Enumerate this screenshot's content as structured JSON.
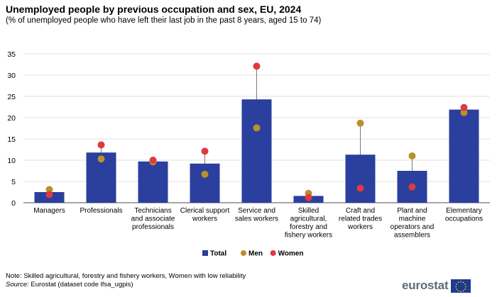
{
  "chart_data": {
    "type": "bar",
    "title": "Unemployed people by previous occupation and sex, EU, 2024",
    "subtitle": "(% of unemployed people who have left their last job in the past 8 years, aged 15 to 74)",
    "xlabel": "",
    "ylabel": "",
    "ylim": [
      0,
      35
    ],
    "yticks": [
      0,
      5,
      10,
      15,
      20,
      25,
      30,
      35
    ],
    "grid": true,
    "legend_position": "bottom-center",
    "categories": [
      [
        "Managers"
      ],
      [
        "Professionals"
      ],
      [
        "Technicians",
        "and associate",
        "professionals"
      ],
      [
        "Clerical support",
        "workers"
      ],
      [
        "Service and",
        "sales workers"
      ],
      [
        "Skilled",
        "agricultural,",
        "forestry and",
        "fishery workers"
      ],
      [
        "Craft and",
        "related trades",
        "workers"
      ],
      [
        "Plant and",
        "machine",
        "operators and",
        "assemblers"
      ],
      [
        "Elementary",
        "occupations"
      ]
    ],
    "series": [
      {
        "name": "Total",
        "kind": "bar",
        "color": "#2a3f9e",
        "values": [
          2.5,
          11.8,
          9.7,
          9.2,
          24.3,
          1.6,
          11.3,
          7.5,
          21.9
        ]
      },
      {
        "name": "Men",
        "kind": "dot",
        "color": "#b8912c",
        "values": [
          3.1,
          10.3,
          9.6,
          6.7,
          17.6,
          2.2,
          18.7,
          11.0,
          21.2
        ]
      },
      {
        "name": "Women",
        "kind": "dot",
        "color": "#e0393e",
        "values": [
          1.9,
          13.6,
          10.0,
          12.1,
          32.1,
          1.2,
          3.4,
          3.7,
          22.4
        ]
      }
    ]
  },
  "footnotes": {
    "note": "Note: Skilled agricultural, forestry and fishery workers, Women with low reliability",
    "source_label": "Source:",
    "source_text": " Eurostat (dataset code lfsa_ugpis)"
  },
  "branding": {
    "logo_text": "eurostat"
  },
  "colors": {
    "grid": "#d9d9d9",
    "axis": "#4d4d4d",
    "connector": "#7a7a7a"
  }
}
